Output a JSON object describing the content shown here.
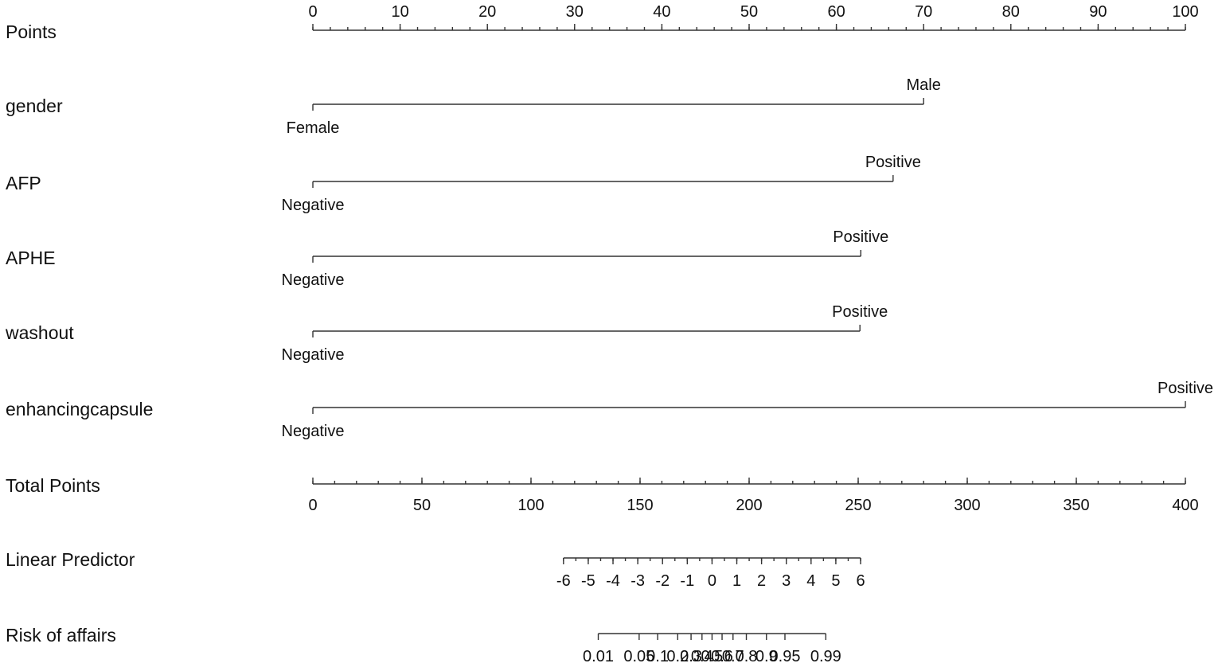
{
  "chart_data": {
    "type": "nomogram",
    "title": "",
    "scales": [
      {
        "id": "points",
        "label": "Points",
        "kind": "axis",
        "range": [
          0,
          100
        ],
        "major_ticks": [
          0,
          10,
          20,
          30,
          40,
          50,
          60,
          70,
          80,
          90,
          100
        ],
        "tick_labels": [
          "0",
          "10",
          "20",
          "30",
          "40",
          "50",
          "60",
          "70",
          "80",
          "90",
          "100"
        ],
        "minor_step": 2
      },
      {
        "id": "gender",
        "label": "gender",
        "kind": "categorical",
        "levels": [
          {
            "name": "Female",
            "points": 0
          },
          {
            "name": "Male",
            "points": 70
          }
        ]
      },
      {
        "id": "afp",
        "label": "AFP",
        "kind": "categorical",
        "levels": [
          {
            "name": "Negative",
            "points": 0
          },
          {
            "name": "Positive",
            "points": 66.5
          }
        ]
      },
      {
        "id": "aphe",
        "label": "APHE",
        "kind": "categorical",
        "levels": [
          {
            "name": "Negative",
            "points": 0
          },
          {
            "name": "Positive",
            "points": 62.8
          }
        ]
      },
      {
        "id": "washout",
        "label": "washout",
        "kind": "categorical",
        "levels": [
          {
            "name": "Negative",
            "points": 0
          },
          {
            "name": "Positive",
            "points": 62.7
          }
        ]
      },
      {
        "id": "enhancingcapsule",
        "label": "enhancingcapsule",
        "kind": "categorical",
        "levels": [
          {
            "name": "Negative",
            "points": 0
          },
          {
            "name": "Positive",
            "points": 100
          }
        ]
      },
      {
        "id": "total_points",
        "label": "Total Points",
        "kind": "axis",
        "range": [
          0,
          400
        ],
        "major_ticks": [
          0,
          50,
          100,
          150,
          200,
          250,
          300,
          350,
          400
        ],
        "tick_labels": [
          "0",
          "50",
          "100",
          "150",
          "200",
          "250",
          "300",
          "350",
          "400"
        ],
        "minor_step": 10
      },
      {
        "id": "linear_predictor",
        "label": "Linear Predictor",
        "kind": "axis",
        "range": [
          -6,
          6
        ],
        "total_points_at_zero": 183,
        "total_points_per_unit": 11.35,
        "major_ticks": [
          -6,
          -5,
          -4,
          -3,
          -2,
          -1,
          0,
          1,
          2,
          3,
          4,
          5,
          6
        ],
        "tick_labels": [
          "-6",
          "-5",
          "-4",
          "-3",
          "-2",
          "-1",
          "0",
          "1",
          "2",
          "3",
          "4",
          "5",
          "6"
        ],
        "minor_step": 0.5
      },
      {
        "id": "risk",
        "label": "Risk of affairs",
        "kind": "probability_axis",
        "ticks": [
          0.01,
          0.05,
          0.1,
          0.2,
          0.3,
          0.4,
          0.5,
          0.6,
          0.7,
          0.8,
          0.9,
          0.95,
          0.99
        ],
        "tick_labels": [
          "0.01",
          "0.05",
          "0.1",
          "0.2",
          "0.3",
          "0.4",
          "0.5",
          "0.6",
          "0.7",
          "0.8",
          "0.9",
          "0.95",
          "0.99"
        ]
      }
    ]
  }
}
